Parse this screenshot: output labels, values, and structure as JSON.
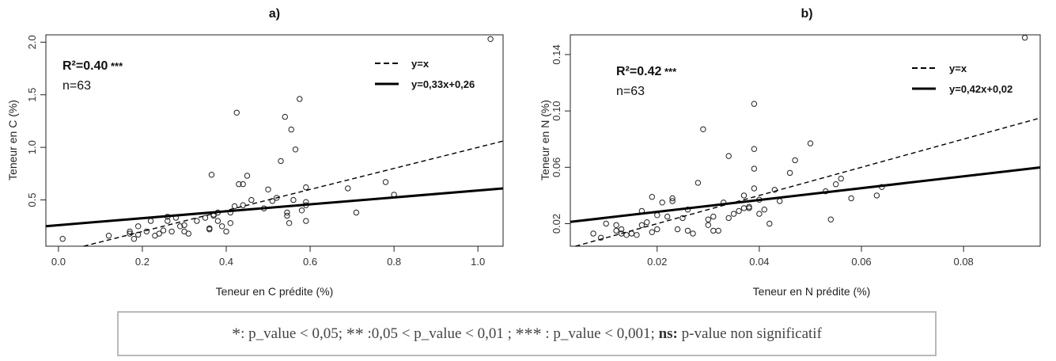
{
  "chart_data": [
    {
      "type": "scatter",
      "panel": "a)",
      "title": "",
      "xlabel": "Teneur en C prédite (%)",
      "ylabel": "Teneur en C (%)",
      "xlim": [
        -0.03,
        1.06
      ],
      "ylim": [
        0.06,
        2.07
      ],
      "xticks": [
        "0.0",
        "0.2",
        "0.4",
        "0.6",
        "0.8",
        "1.0"
      ],
      "xtick_values": [
        0,
        0.2,
        0.4,
        0.6,
        0.8,
        1.0
      ],
      "yticks": [
        "0.5",
        "1.0",
        "1.5",
        "2.0"
      ],
      "ytick_values": [
        0.5,
        1.0,
        1.5,
        2.0
      ],
      "stat_r2_label": "R²=0.40",
      "stat_stars": " ***",
      "stat_n": "n=63",
      "legend": [
        {
          "label": "y=x",
          "style": "dashed",
          "slope": 1,
          "intercept": 0
        },
        {
          "label": "y=0,33x+0,26",
          "style": "solid",
          "slope": 0.33,
          "intercept": 0.26
        }
      ],
      "points": [
        [
          0.01,
          0.13
        ],
        [
          0.12,
          0.16
        ],
        [
          0.17,
          0.18
        ],
        [
          0.17,
          0.2
        ],
        [
          0.18,
          0.13
        ],
        [
          0.19,
          0.17
        ],
        [
          0.19,
          0.25
        ],
        [
          0.21,
          0.2
        ],
        [
          0.22,
          0.3
        ],
        [
          0.23,
          0.16
        ],
        [
          0.24,
          0.18
        ],
        [
          0.25,
          0.21
        ],
        [
          0.26,
          0.34
        ],
        [
          0.26,
          0.3
        ],
        [
          0.27,
          0.2
        ],
        [
          0.28,
          0.33
        ],
        [
          0.29,
          0.25
        ],
        [
          0.3,
          0.2
        ],
        [
          0.3,
          0.26
        ],
        [
          0.31,
          0.18
        ],
        [
          0.33,
          0.3
        ],
        [
          0.35,
          0.33
        ],
        [
          0.36,
          0.22
        ],
        [
          0.36,
          0.23
        ],
        [
          0.37,
          0.35
        ],
        [
          0.37,
          0.36
        ],
        [
          0.38,
          0.3
        ],
        [
          0.38,
          0.38
        ],
        [
          0.39,
          0.25
        ],
        [
          0.4,
          0.2
        ],
        [
          0.41,
          0.28
        ],
        [
          0.41,
          0.38
        ],
        [
          0.42,
          0.44
        ],
        [
          0.43,
          0.65
        ],
        [
          0.44,
          0.65
        ],
        [
          0.45,
          0.73
        ],
        [
          0.46,
          0.5
        ],
        [
          0.365,
          0.74
        ],
        [
          0.425,
          1.33
        ],
        [
          0.5,
          0.6
        ],
        [
          0.51,
          0.49
        ],
        [
          0.52,
          0.52
        ],
        [
          0.53,
          0.87
        ],
        [
          0.54,
          1.29
        ],
        [
          0.545,
          0.35
        ],
        [
          0.545,
          0.38
        ],
        [
          0.55,
          0.28
        ],
        [
          0.555,
          1.17
        ],
        [
          0.56,
          0.5
        ],
        [
          0.565,
          0.98
        ],
        [
          0.575,
          1.46
        ],
        [
          0.58,
          0.4
        ],
        [
          0.59,
          0.45
        ],
        [
          0.59,
          0.48
        ],
        [
          0.59,
          0.62
        ],
        [
          0.59,
          0.3
        ],
        [
          0.69,
          0.61
        ],
        [
          0.71,
          0.38
        ],
        [
          0.78,
          0.67
        ],
        [
          0.8,
          0.55
        ],
        [
          1.03,
          2.03
        ],
        [
          0.44,
          0.45
        ],
        [
          0.49,
          0.42
        ]
      ]
    },
    {
      "type": "scatter",
      "panel": "b)",
      "title": "",
      "xlabel": "Teneur en N prédite (%)",
      "ylabel": "Teneur en N (%)",
      "xlim": [
        0.003,
        0.095
      ],
      "ylim": [
        0.004,
        0.154
      ],
      "xticks": [
        "0.02",
        "0.04",
        "0.06",
        "0.08"
      ],
      "xtick_values": [
        0.02,
        0.04,
        0.06,
        0.08
      ],
      "yticks": [
        "0.02",
        "0.06",
        "0.10",
        "0.14"
      ],
      "ytick_values": [
        0.02,
        0.06,
        0.1,
        0.14
      ],
      "stat_r2_label": "R²=0.42",
      "stat_stars": " ***",
      "stat_n": "n=63",
      "legend": [
        {
          "label": "y=x",
          "style": "dashed",
          "slope": 1,
          "intercept": 0
        },
        {
          "label": "y=0,42x+0,02",
          "style": "solid",
          "slope": 0.42,
          "intercept": 0.02
        }
      ],
      "points": [
        [
          0.0075,
          0.013
        ],
        [
          0.009,
          0.01
        ],
        [
          0.01,
          0.02
        ],
        [
          0.012,
          0.019
        ],
        [
          0.012,
          0.015
        ],
        [
          0.013,
          0.016
        ],
        [
          0.013,
          0.013
        ],
        [
          0.014,
          0.012
        ],
        [
          0.015,
          0.013
        ],
        [
          0.016,
          0.012
        ],
        [
          0.017,
          0.029
        ],
        [
          0.017,
          0.019
        ],
        [
          0.018,
          0.021
        ],
        [
          0.019,
          0.039
        ],
        [
          0.019,
          0.014
        ],
        [
          0.02,
          0.016
        ],
        [
          0.02,
          0.026
        ],
        [
          0.021,
          0.035
        ],
        [
          0.022,
          0.025
        ],
        [
          0.023,
          0.036
        ],
        [
          0.023,
          0.038
        ],
        [
          0.024,
          0.016
        ],
        [
          0.025,
          0.024
        ],
        [
          0.026,
          0.015
        ],
        [
          0.027,
          0.013
        ],
        [
          0.028,
          0.049
        ],
        [
          0.029,
          0.087
        ],
        [
          0.03,
          0.023
        ],
        [
          0.03,
          0.019
        ],
        [
          0.031,
          0.015
        ],
        [
          0.031,
          0.025
        ],
        [
          0.032,
          0.015
        ],
        [
          0.033,
          0.035
        ],
        [
          0.034,
          0.068
        ],
        [
          0.034,
          0.024
        ],
        [
          0.035,
          0.027
        ],
        [
          0.036,
          0.029
        ],
        [
          0.037,
          0.031
        ],
        [
          0.038,
          0.031
        ],
        [
          0.038,
          0.032
        ],
        [
          0.039,
          0.059
        ],
        [
          0.039,
          0.073
        ],
        [
          0.039,
          0.105
        ],
        [
          0.039,
          0.045
        ],
        [
          0.04,
          0.027
        ],
        [
          0.041,
          0.03
        ],
        [
          0.042,
          0.02
        ],
        [
          0.043,
          0.044
        ],
        [
          0.046,
          0.056
        ],
        [
          0.047,
          0.065
        ],
        [
          0.05,
          0.077
        ],
        [
          0.053,
          0.043
        ],
        [
          0.054,
          0.023
        ],
        [
          0.055,
          0.048
        ],
        [
          0.056,
          0.052
        ],
        [
          0.058,
          0.038
        ],
        [
          0.063,
          0.04
        ],
        [
          0.064,
          0.046
        ],
        [
          0.092,
          0.152
        ],
        [
          0.037,
          0.04
        ],
        [
          0.04,
          0.037
        ],
        [
          0.026,
          0.03
        ],
        [
          0.044,
          0.036
        ]
      ]
    }
  ],
  "footnote": {
    "s1_star": "*",
    "s1_text": ": p_value < 0,05; ",
    "s2_star": "**",
    "s2_text": " :0,05 < p_value < 0,01 ; ",
    "s3_star": "***",
    "s3_text": " : p_value < 0,001; ",
    "ns_label": "ns:",
    "ns_text": " p-value non significatif"
  }
}
